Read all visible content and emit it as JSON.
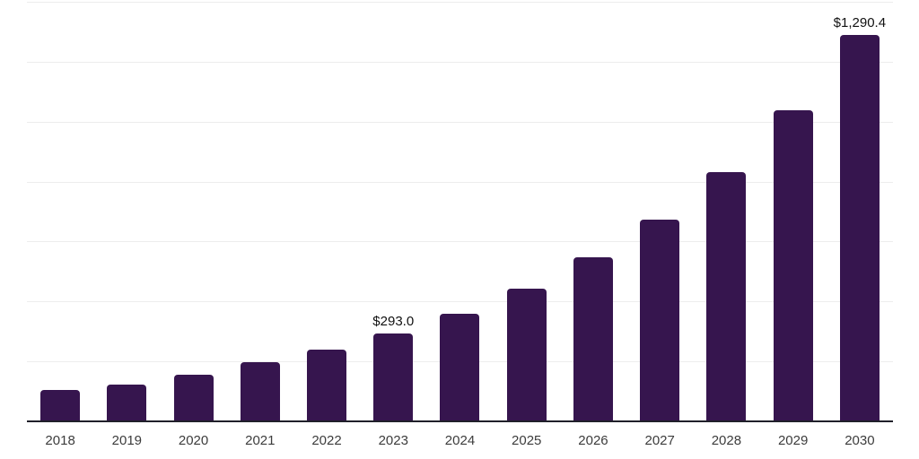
{
  "chart_data": {
    "type": "bar",
    "title": "",
    "xlabel": "",
    "ylabel": "",
    "categories": [
      "2018",
      "2019",
      "2020",
      "2021",
      "2022",
      "2023",
      "2024",
      "2025",
      "2026",
      "2027",
      "2028",
      "2029",
      "2030"
    ],
    "values": [
      104,
      124,
      157,
      196,
      239,
      293.0,
      358,
      442,
      546,
      672,
      832,
      1037,
      1290.4
    ],
    "bar_labels": [
      "",
      "",
      "",
      "",
      "",
      "$293.0",
      "",
      "",
      "",
      "",
      "",
      "",
      "$1,290.4"
    ],
    "ylim": [
      0,
      1400
    ],
    "gridline_step": 200,
    "grid": "horizontal",
    "legend": "none",
    "colors": {
      "bar": "#36154E",
      "axis_line": "#20202A",
      "gridline": "#EDEDED",
      "tick_label": "#3C3C3C",
      "value_label": "#111111",
      "background": "#FFFFFF"
    }
  }
}
